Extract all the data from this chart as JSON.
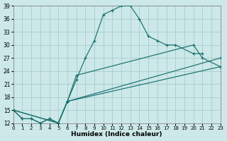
{
  "xlabel": "Humidex (Indice chaleur)",
  "background_color": "#cce8e8",
  "grid_color": "#aacccc",
  "line_color": "#1a7070",
  "xlim": [
    0,
    23
  ],
  "ylim": [
    12,
    39
  ],
  "xticks": [
    0,
    1,
    2,
    3,
    4,
    5,
    6,
    7,
    8,
    9,
    10,
    11,
    12,
    13,
    14,
    15,
    16,
    17,
    18,
    19,
    20,
    21,
    22,
    23
  ],
  "yticks": [
    12,
    15,
    18,
    21,
    24,
    27,
    30,
    33,
    36,
    39
  ],
  "series": [
    {
      "x": [
        0,
        1,
        2,
        3,
        4,
        5,
        6,
        7,
        8,
        9,
        10,
        11,
        12,
        13,
        14,
        15,
        16,
        17,
        18,
        20,
        21
      ],
      "y": [
        15,
        13,
        13,
        12,
        13,
        12,
        17,
        22,
        27,
        31,
        37,
        38,
        39,
        39,
        36,
        32,
        31,
        30,
        30,
        28,
        28
      ]
    },
    {
      "x": [
        0,
        1,
        2,
        3,
        4,
        5,
        6,
        7,
        20,
        21,
        23
      ],
      "y": [
        15,
        13,
        13,
        12,
        13,
        12,
        17,
        23,
        30,
        27,
        25
      ]
    },
    {
      "x": [
        0,
        5,
        6,
        23
      ],
      "y": [
        15,
        12,
        17,
        27
      ]
    },
    {
      "x": [
        0,
        5,
        6,
        23
      ],
      "y": [
        15,
        12,
        17,
        25
      ]
    }
  ]
}
